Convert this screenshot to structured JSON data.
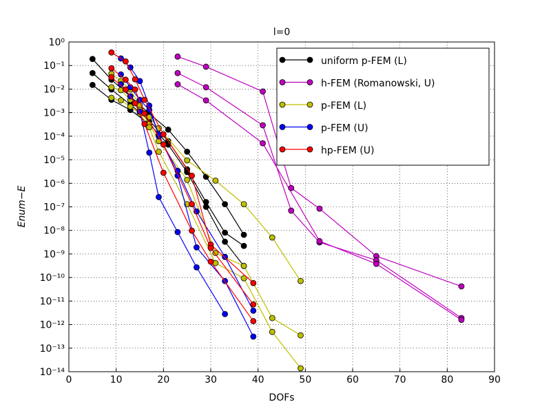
{
  "chart_data": {
    "type": "line",
    "title": "l=0",
    "x_label": "DOFs",
    "y_label": "Enum−E",
    "xlim": [
      0,
      90
    ],
    "xticks": [
      0,
      10,
      20,
      30,
      40,
      50,
      60,
      70,
      80,
      90
    ],
    "ylim": [
      1e-14,
      1
    ],
    "log_y": true,
    "grid": true,
    "legend_position": "upper-right",
    "yticks": [
      {
        "value": 1,
        "label": "10⁰"
      },
      {
        "value": 0.1,
        "label": "10⁻¹"
      },
      {
        "value": 0.01,
        "label": "10⁻²"
      },
      {
        "value": 0.001,
        "label": "10⁻³"
      },
      {
        "value": 0.0001,
        "label": "10⁻⁴"
      },
      {
        "value": 1e-05,
        "label": "10⁻⁵"
      },
      {
        "value": 1e-06,
        "label": "10⁻⁶"
      },
      {
        "value": 1e-07,
        "label": "10⁻⁷"
      },
      {
        "value": 1e-08,
        "label": "10⁻⁸"
      },
      {
        "value": 1e-09,
        "label": "10⁻⁹"
      },
      {
        "value": 1e-10,
        "label": "10⁻¹⁰"
      },
      {
        "value": 1e-11,
        "label": "10⁻¹¹"
      },
      {
        "value": 1e-12,
        "label": "10⁻¹²"
      },
      {
        "value": 1e-13,
        "label": "10⁻¹³"
      },
      {
        "value": 1e-14,
        "label": "10⁻¹⁴"
      }
    ],
    "series": [
      {
        "name": "uniform p-FEM (L)",
        "color": "#000000",
        "curves": [
          {
            "x": [
              5,
              9,
              13,
              17,
              21,
              25,
              29,
              33,
              37
            ],
            "values": [
              0.19,
              0.025,
              0.0049,
              0.00091,
              0.00019,
              2.2e-05,
              1.9e-06,
              1.3e-07,
              6.5e-09
            ]
          },
          {
            "x": [
              5,
              9,
              13,
              17,
              21,
              25,
              29,
              33,
              37
            ],
            "values": [
              0.048,
              0.0096,
              0.0022,
              0.00046,
              6.2e-05,
              3.9e-06,
              1.6e-07,
              8e-09,
              2.2e-09
            ]
          },
          {
            "x": [
              5,
              9,
              13,
              17,
              21,
              25,
              29,
              33,
              37
            ],
            "values": [
              0.015,
              0.0035,
              0.0013,
              0.00033,
              4.4e-05,
              3e-06,
              1e-07,
              3.3e-09,
              3.1e-10
            ]
          }
        ]
      },
      {
        "name": "h-FEM (Romanowski, U)",
        "color": "#bf00bf",
        "curves": [
          {
            "x": [
              23,
              29,
              41,
              47,
              53,
              65,
              83
            ],
            "values": [
              0.24,
              0.089,
              0.0079,
              6.3e-07,
              8.4e-08,
              8.1e-10,
              4.2e-11
            ]
          },
          {
            "x": [
              23,
              29,
              41,
              47,
              53,
              65,
              83
            ],
            "values": [
              0.048,
              0.012,
              0.00029,
              6.9e-08,
              3.1e-09,
              5.4e-10,
              1.9e-12
            ]
          },
          {
            "x": [
              23,
              29,
              41,
              53,
              65,
              83
            ],
            "values": [
              0.016,
              0.0033,
              5e-05,
              3.5e-09,
              3.8e-10,
              1.6e-12
            ]
          }
        ]
      },
      {
        "name": "p-FEM (L)",
        "color": "#bfbf00",
        "curves": [
          {
            "x": [
              9,
              11,
              13,
              15,
              17,
              19,
              25,
              31,
              37,
              43,
              49
            ],
            "values": [
              0.045,
              0.022,
              0.0096,
              0.002,
              0.00065,
              0.00022,
              9.4e-06,
              1.3e-06,
              1.3e-07,
              5e-09,
              7.1e-11
            ]
          },
          {
            "x": [
              9,
              11,
              13,
              15,
              17,
              19,
              25,
              31,
              37,
              43,
              49
            ],
            "values": [
              0.012,
              0.009,
              0.0035,
              0.0013,
              0.00033,
              6.2e-05,
              1.4e-06,
              1.1e-09,
              3.1e-10,
              1.9e-12,
              3.5e-13
            ]
          },
          {
            "x": [
              9,
              11,
              13,
              15,
              17,
              19,
              25,
              31,
              37,
              43,
              49
            ],
            "values": [
              0.0043,
              0.0033,
              0.0018,
              0.00091,
              0.00024,
              2.2e-05,
              1.3e-07,
              4.1e-10,
              9.3e-11,
              4.9e-13,
              1.4e-14
            ]
          }
        ]
      },
      {
        "name": "p-FEM (U)",
        "color": "#0000ff",
        "curves": [
          {
            "x": [
              11,
              13,
              15,
              17,
              19,
              23,
              27,
              33,
              39
            ],
            "values": [
              0.2,
              0.083,
              0.022,
              0.002,
              9.9e-05,
              3.4e-06,
              6.4e-08,
              7.5e-10,
              3.9e-12
            ]
          },
          {
            "x": [
              11,
              13,
              15,
              17,
              19,
              23,
              27,
              33,
              39
            ],
            "values": [
              0.042,
              0.012,
              0.0035,
              0.0013,
              0.00012,
              2.1e-06,
              1.9e-09,
              7.1e-11,
              3.1e-13
            ]
          },
          {
            "x": [
              11,
              13,
              15,
              17,
              19,
              23,
              27,
              33
            ],
            "values": [
              0.016,
              0.0049,
              0.0011,
              2e-05,
              2.6e-07,
              8.5e-09,
              2.7e-10,
              2.8e-12
            ]
          }
        ]
      },
      {
        "name": "hp-FEM (U)",
        "color": "#ff0000",
        "curves": [
          {
            "x": [
              9,
              12,
              14,
              16,
              20,
              26,
              30,
              39
            ],
            "values": [
              0.36,
              0.15,
              0.026,
              0.0035,
              0.00012,
              2.1e-06,
              2.5e-09,
              5.8e-11
            ]
          },
          {
            "x": [
              9,
              12,
              14,
              16,
              20,
              26,
              30,
              39
            ],
            "values": [
              0.077,
              0.025,
              0.0096,
              0.00091,
              4.4e-05,
              1.3e-07,
              1.8e-09,
              7.2e-12
            ]
          },
          {
            "x": [
              9,
              12,
              14,
              16,
              20,
              26,
              30,
              39
            ],
            "values": [
              0.032,
              0.0096,
              0.0025,
              0.00033,
              2.8e-06,
              9.7e-09,
              4.7e-10,
              1.4e-12
            ]
          }
        ]
      }
    ]
  }
}
